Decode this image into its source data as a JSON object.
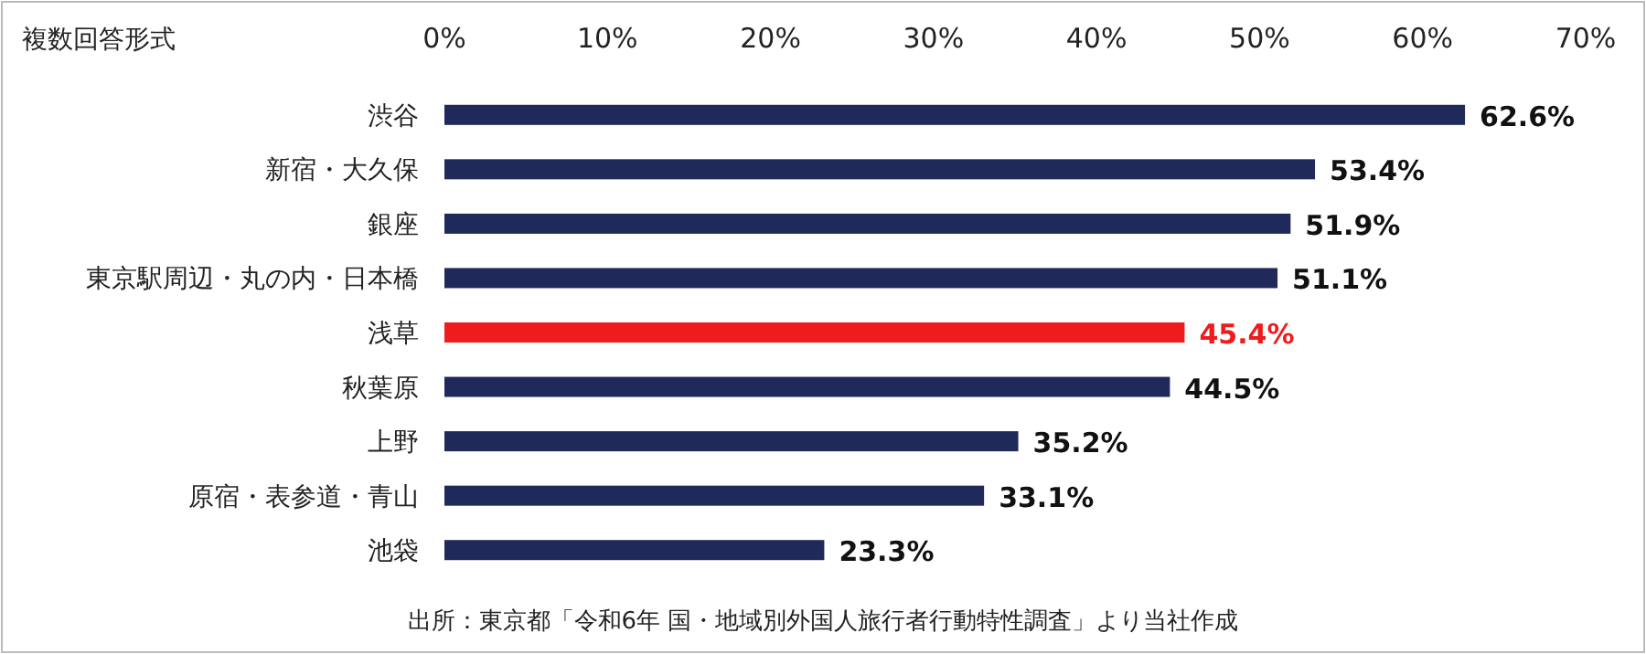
{
  "chart_data": {
    "type": "bar",
    "orientation": "horizontal",
    "title": "複数回答形式",
    "categories": [
      "渋谷",
      "新宿・大久保",
      "銀座",
      "東京駅周辺・丸の内・日本橋",
      "浅草",
      "秋葉原",
      "上野",
      "原宿・表参道・青山",
      "池袋"
    ],
    "values": [
      62.6,
      53.4,
      51.9,
      51.1,
      45.4,
      44.5,
      35.2,
      33.1,
      23.3
    ],
    "value_labels": [
      "62.6%",
      "53.4%",
      "51.9%",
      "51.1%",
      "45.4%",
      "44.5%",
      "35.2%",
      "33.1%",
      "23.3%"
    ],
    "colors": [
      "#1f2a5a",
      "#1f2a5a",
      "#1f2a5a",
      "#1f2a5a",
      "#ee1c1c",
      "#1f2a5a",
      "#1f2a5a",
      "#1f2a5a",
      "#1f2a5a"
    ],
    "xlim": [
      0,
      70
    ],
    "xticks": [
      {
        "value": 0,
        "label": "0%"
      },
      {
        "value": 10,
        "label": "10%"
      },
      {
        "value": 20,
        "label": "20%"
      },
      {
        "value": 30,
        "label": "30%"
      },
      {
        "value": 40,
        "label": "40%"
      },
      {
        "value": 50,
        "label": "50%"
      },
      {
        "value": 60,
        "label": "60%"
      },
      {
        "value": 70,
        "label": "70%"
      }
    ],
    "grid": false,
    "annotations": [
      "出所：東京都「令和6年 国・地域別外国人旅行者行動特性調査」より当社作成"
    ]
  }
}
